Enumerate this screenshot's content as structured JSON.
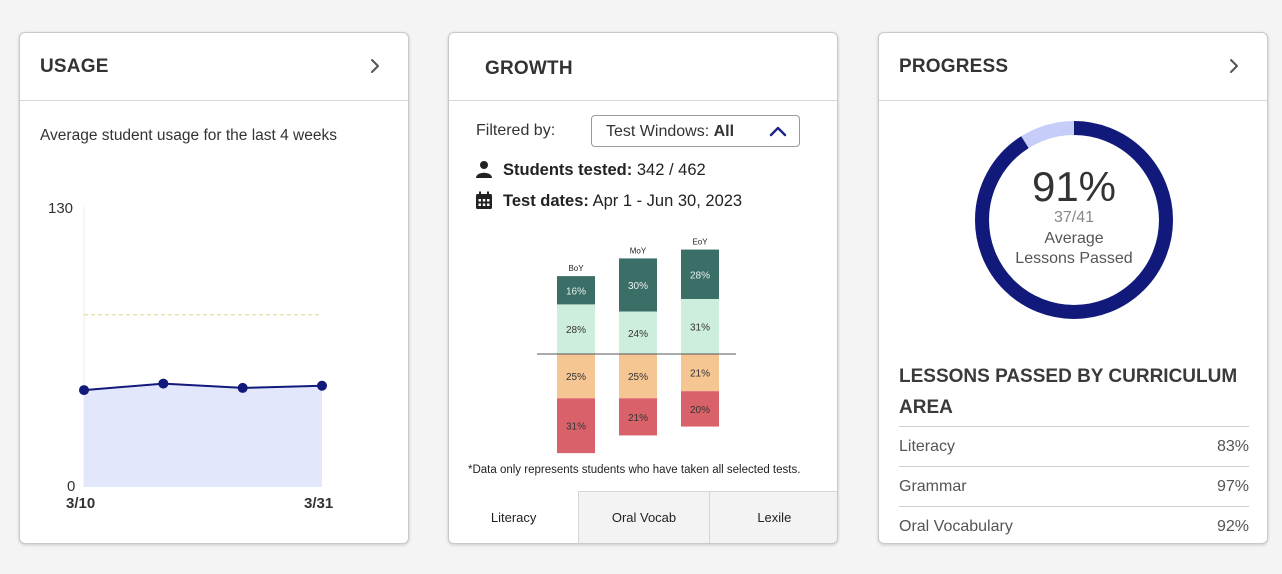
{
  "usage": {
    "title": "USAGE",
    "subtitle": "Average student usage for the last 4 weeks",
    "chart_data": {
      "type": "area",
      "title": "",
      "ylim": [
        0,
        130
      ],
      "y_tick_labels": [
        "130",
        "0"
      ],
      "x_tick_labels": [
        "3/10",
        "3/31"
      ],
      "target_line": 80,
      "values": [
        45,
        48,
        46,
        47
      ],
      "colors": {
        "line": "#111a7a",
        "fill": "#e3e7fb",
        "target": "#e9e3b0"
      }
    }
  },
  "growth": {
    "title": "GROWTH",
    "filter_label": "Filtered by:",
    "filter_name": "Test Windows:",
    "filter_value": "All",
    "students_label": "Students tested:",
    "students_value": "342 / 462",
    "dates_label": "Test dates:",
    "dates_value": "Apr 1 - Jun 30, 2023",
    "note": "*Data only represents students who have taken all selected tests.",
    "tabs": [
      "Literacy",
      "Oral Vocab",
      "Lexile"
    ],
    "active_tab": 0,
    "chart_data": {
      "type": "bar",
      "stacked": "diverging",
      "categories": [
        "BoY",
        "MoY",
        "EoY"
      ],
      "series": [
        {
          "values": [
            16,
            30,
            28
          ],
          "labels": [
            "16%",
            "30%",
            "28%"
          ],
          "color": "#3b6e66"
        },
        {
          "values": [
            28,
            24,
            31
          ],
          "labels": [
            "28%",
            "24%",
            "31%"
          ],
          "color": "#cdeedd"
        },
        {
          "values": [
            25,
            25,
            21
          ],
          "labels": [
            "25%",
            "25%",
            "21%"
          ],
          "color": "#f5c692"
        },
        {
          "values": [
            31,
            21,
            20
          ],
          "labels": [
            "31%",
            "21%",
            "20%"
          ],
          "color": "#d9626a"
        }
      ]
    }
  },
  "progress": {
    "title": "PROGRESS",
    "percent_text": "91%",
    "fraction_text": "37/41",
    "label_line1": "Average",
    "label_line2": "Lessons Passed",
    "percent": 0.91,
    "colors": {
      "ring": "#111a7a",
      "ring_rest": "#c5cdf8"
    },
    "lessons_title": "LESSONS PASSED BY CURRICULUM AREA",
    "lessons": [
      {
        "area": "Literacy",
        "value": "83%"
      },
      {
        "area": "Grammar",
        "value": "97%"
      },
      {
        "area": "Oral Vocabulary",
        "value": "92%"
      }
    ]
  }
}
